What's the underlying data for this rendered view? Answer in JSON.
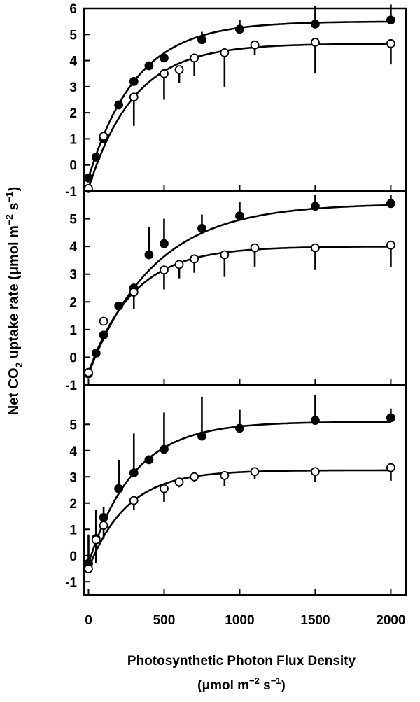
{
  "figure": {
    "ylabel_main": "Net CO",
    "ylabel_sub": "2",
    "ylabel_rest": " uptake rate (μmol m",
    "ylabel_exp": "−2",
    "ylabel_tail": " s",
    "ylabel_exp2": "−1",
    "ylabel_close": ")",
    "xlabel_line1": "Photosynthetic Photon Flux Density",
    "xlabel_line2_a": "(μmol m",
    "xlabel_line2_exp": "−2",
    "xlabel_line2_b": " s",
    "xlabel_line2_exp2": "−1",
    "xlabel_line2_c": ")"
  },
  "chart_data": [
    {
      "type": "scatter",
      "panel": "top",
      "x_ticks": [
        0,
        500,
        1000,
        1500,
        2000
      ],
      "y_ticks": [
        -1,
        0,
        1,
        2,
        3,
        4,
        5,
        6
      ],
      "xlim": [
        -30,
        2100
      ],
      "ylim": [
        -1,
        6
      ],
      "series": [
        {
          "marker": "filled",
          "x": [
            0,
            50,
            100,
            200,
            300,
            400,
            500,
            750,
            1000,
            1500,
            2000
          ],
          "y": [
            -0.5,
            0.3,
            1.0,
            2.3,
            3.2,
            3.8,
            4.1,
            4.8,
            5.2,
            5.4,
            5.55
          ],
          "err": [
            0,
            0,
            0,
            0,
            0,
            0,
            0,
            0.3,
            0.35,
            0.7,
            0.6
          ],
          "fit_asymptote": 5.5
        },
        {
          "marker": "open",
          "x": [
            0,
            100,
            300,
            500,
            600,
            700,
            900,
            1100,
            1500,
            2000
          ],
          "y": [
            -0.9,
            1.1,
            2.6,
            3.5,
            3.65,
            4.1,
            4.3,
            4.6,
            4.7,
            4.65
          ],
          "err": [
            0,
            0,
            1.1,
            1.0,
            0.5,
            0.7,
            1.3,
            0.4,
            1.2,
            0.8
          ],
          "fit_asymptote": 4.65
        }
      ]
    },
    {
      "type": "scatter",
      "panel": "middle",
      "x_ticks": [
        0,
        500,
        1000,
        1500,
        2000
      ],
      "y_ticks": [
        -1,
        0,
        1,
        2,
        3,
        4,
        5
      ],
      "xlim": [
        -30,
        2100
      ],
      "ylim": [
        -1,
        6
      ],
      "series": [
        {
          "marker": "filled",
          "x": [
            0,
            50,
            100,
            200,
            300,
            400,
            500,
            750,
            1000,
            1500,
            2000
          ],
          "y": [
            -0.6,
            0.15,
            0.8,
            1.85,
            2.5,
            3.7,
            4.1,
            4.65,
            5.1,
            5.45,
            5.55
          ],
          "err": [
            0,
            0,
            0,
            0,
            0,
            1.0,
            0.9,
            0.5,
            0.5,
            0.4,
            0.3
          ],
          "fit_asymptote": 5.55
        },
        {
          "marker": "open",
          "x": [
            0,
            100,
            300,
            500,
            600,
            700,
            900,
            1100,
            1500,
            2000
          ],
          "y": [
            -0.55,
            1.3,
            2.35,
            3.15,
            3.35,
            3.55,
            3.7,
            3.95,
            3.95,
            4.05
          ],
          "err": [
            0,
            0,
            0.6,
            0.7,
            0.5,
            0.5,
            0.8,
            0.7,
            0.8,
            0.8
          ],
          "fit_asymptote": 4.0
        }
      ]
    },
    {
      "type": "scatter",
      "panel": "bottom",
      "x_ticks": [
        0,
        500,
        1000,
        1500,
        2000
      ],
      "y_ticks": [
        -1,
        0,
        1,
        2,
        3,
        4,
        5
      ],
      "xlim": [
        -30,
        2100
      ],
      "ylim": [
        -1.5,
        6.5
      ],
      "series": [
        {
          "marker": "filled",
          "x": [
            0,
            50,
            100,
            200,
            300,
            400,
            500,
            750,
            1000,
            1500,
            2000
          ],
          "y": [
            -0.3,
            0.65,
            1.45,
            2.55,
            3.15,
            3.65,
            4.05,
            4.55,
            4.85,
            5.15,
            5.25
          ],
          "err": [
            1.1,
            1.1,
            0.4,
            1.1,
            1.5,
            0,
            1.4,
            1.5,
            0.7,
            0.95,
            0.35
          ],
          "fit_asymptote": 5.1
        },
        {
          "marker": "open",
          "x": [
            0,
            50,
            100,
            300,
            500,
            600,
            700,
            900,
            1100,
            1500,
            2000
          ],
          "y": [
            -0.5,
            0.6,
            1.15,
            2.1,
            2.55,
            2.8,
            3.0,
            3.05,
            3.2,
            3.2,
            3.35
          ],
          "err": [
            0,
            0.9,
            0.5,
            0.35,
            0.5,
            0.2,
            0.2,
            0.4,
            0.3,
            0.4,
            0.5
          ],
          "fit_asymptote": 3.25
        }
      ]
    }
  ]
}
